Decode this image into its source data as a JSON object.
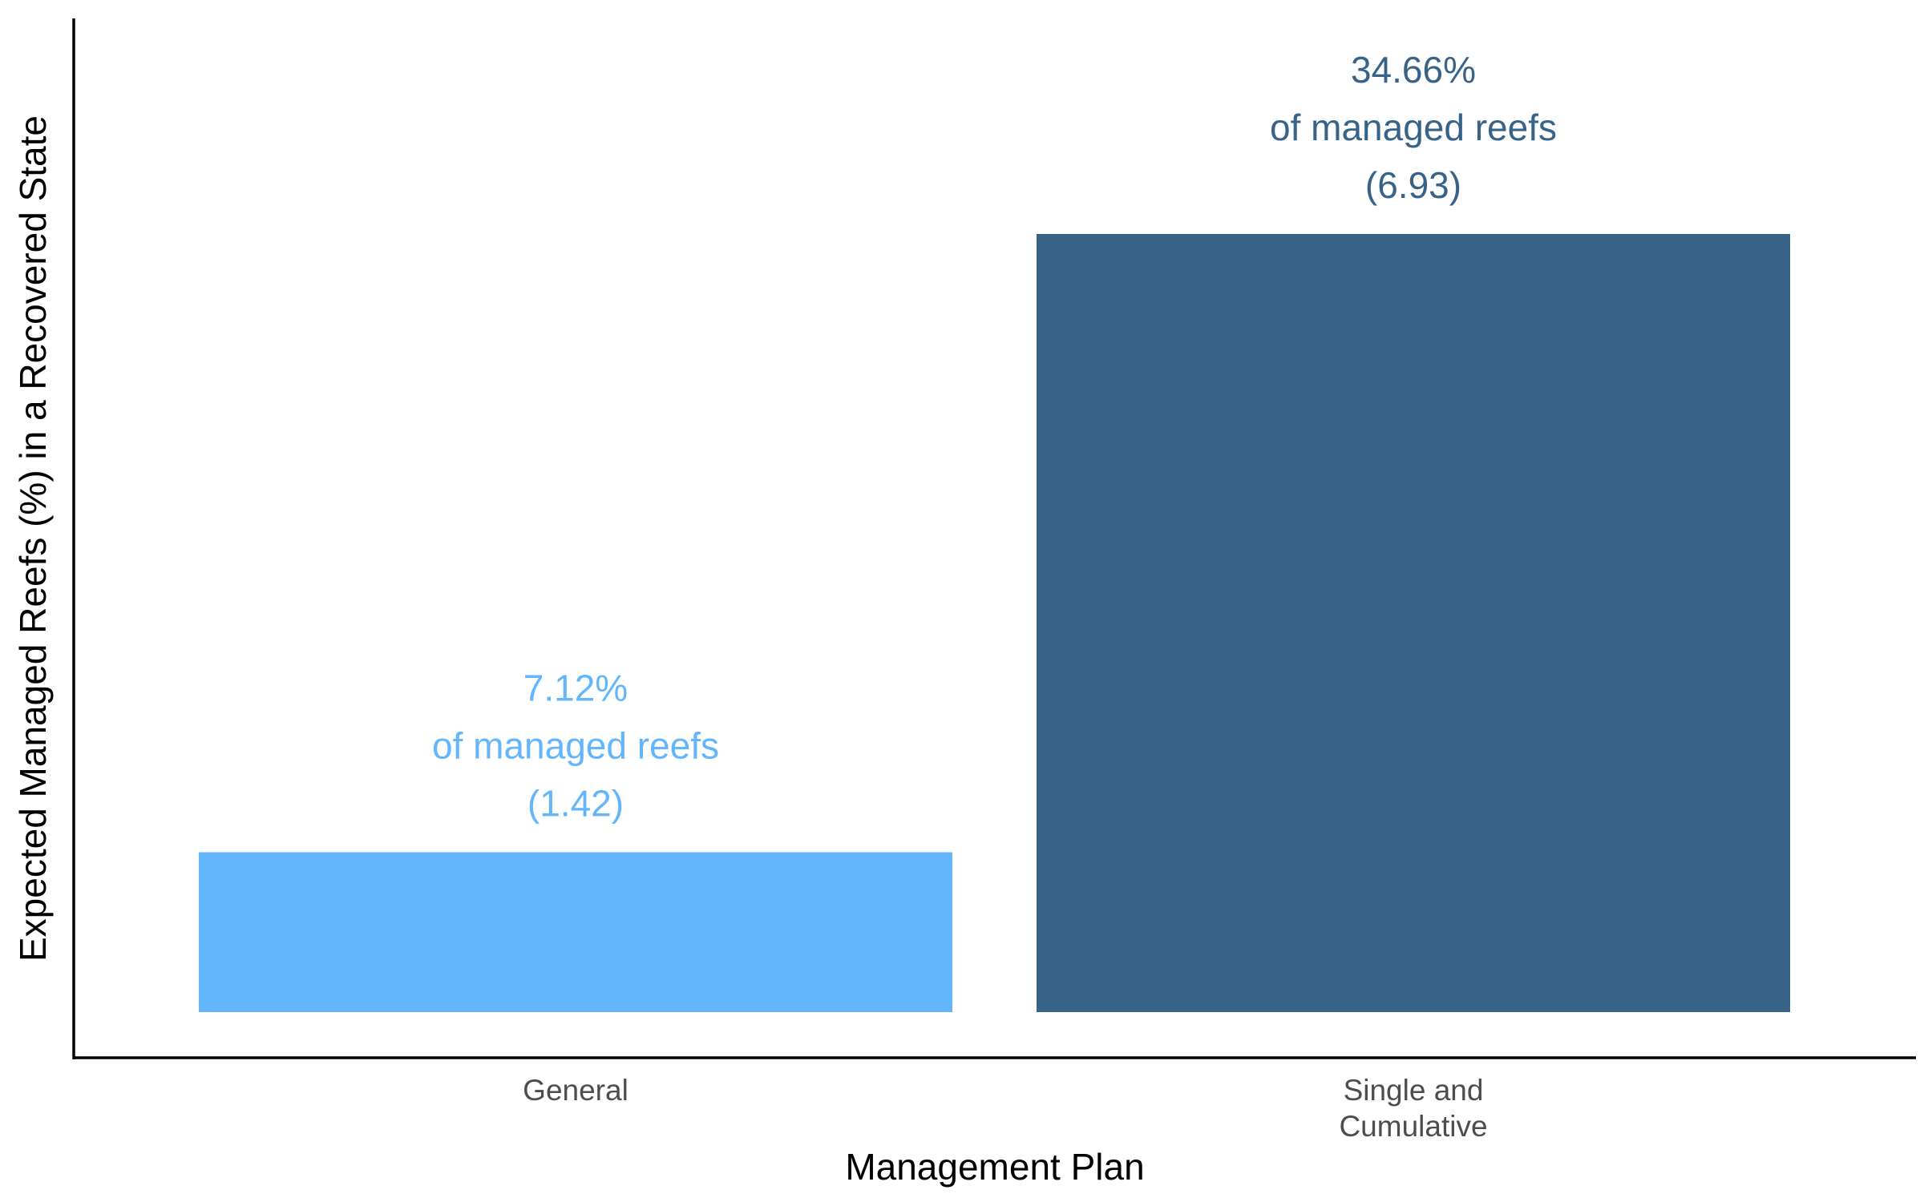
{
  "chart_data": {
    "type": "bar",
    "categories": [
      "General",
      "Single and Cumulative"
    ],
    "tick_labels": [
      [
        "General"
      ],
      [
        "Single and",
        "Cumulative"
      ]
    ],
    "values": [
      7.12,
      34.66
    ],
    "counts": [
      1.42,
      6.93
    ],
    "data_labels": [
      [
        "7.12%",
        "of managed reefs",
        "(1.42)"
      ],
      [
        "34.66%",
        "of managed reefs",
        "(6.93)"
      ]
    ],
    "colors": [
      "#63b5fc",
      "#376388"
    ],
    "xlabel": "Management Plan",
    "ylabel": "Expected Managed Reefs (%) in a Recovered State",
    "ylim": [
      0,
      34.66
    ],
    "grid": false,
    "legend": "none",
    "y_ticks": "none"
  }
}
